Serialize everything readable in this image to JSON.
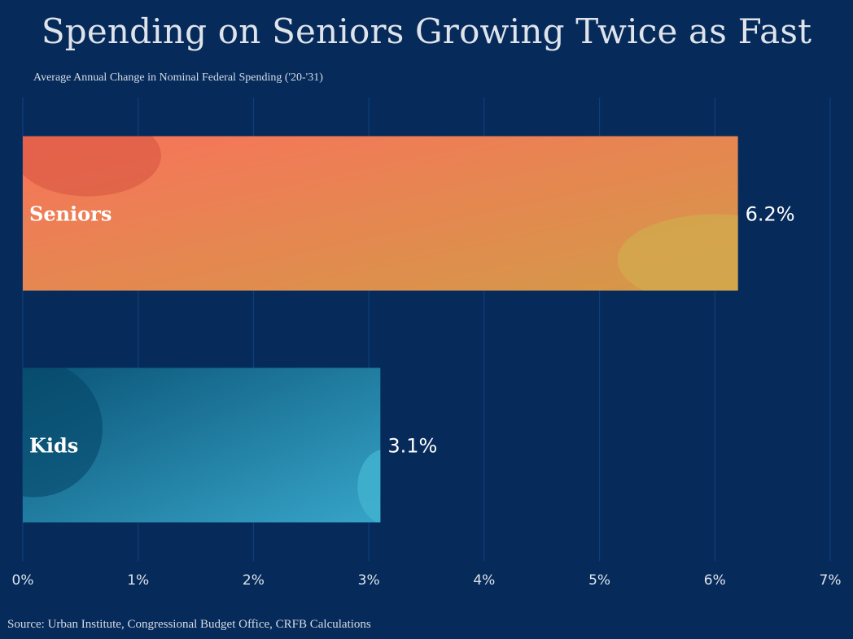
{
  "chart_data": {
    "type": "bar",
    "orientation": "horizontal",
    "title": "Spending on Seniors Growing Twice as Fast",
    "subtitle": "Average Annual Change in Nominal Federal Spending ('20-'31)",
    "categories": [
      "Seniors",
      "Kids"
    ],
    "values": [
      6.2,
      3.1
    ],
    "value_labels": [
      "6.2%",
      "3.1%"
    ],
    "xlim": [
      0,
      7
    ],
    "x_ticks": [
      0,
      1,
      2,
      3,
      4,
      5,
      6,
      7
    ],
    "x_tick_labels": [
      "0%",
      "1%",
      "2%",
      "3%",
      "4%",
      "5%",
      "6%",
      "7%"
    ],
    "grid": "vertical",
    "legend": "none",
    "colors": {
      "background": "#062b5b",
      "gridline": "#0f3f78",
      "seniors_start": "#f8735a",
      "seniors_end": "#d39a48",
      "kids_start": "#0b5578",
      "kids_end": "#36a4c8"
    }
  },
  "source": "Source: Urban Institute, Congressional Budget Office, CRFB Calculations"
}
